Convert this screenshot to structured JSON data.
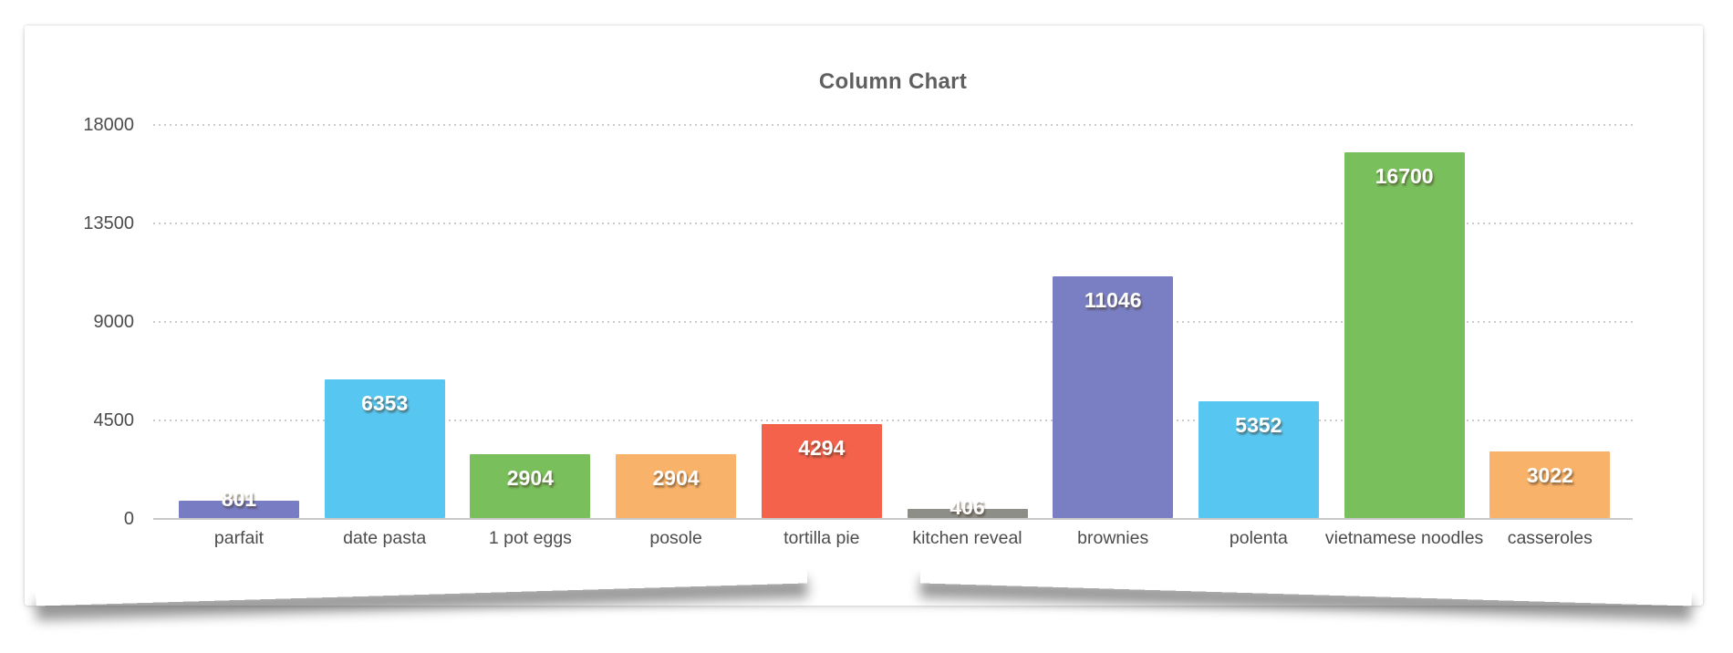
{
  "card": {
    "title_label": "Column Chart"
  },
  "chart_data": {
    "type": "bar",
    "title": "Column Chart",
    "categories": [
      "parfait",
      "date pasta",
      "1 pot eggs",
      "posole",
      "tortilla pie",
      "kitchen reveal",
      "brownies",
      "polenta",
      "vietnamese noodles",
      "casseroles"
    ],
    "values": [
      801,
      6353,
      2904,
      2904,
      4294,
      406,
      11046,
      5352,
      16700,
      3022
    ],
    "value_labels": [
      "801",
      "6353",
      "2904",
      "2904",
      "4294",
      "406",
      "11046",
      "5352",
      "16700",
      "3022"
    ],
    "bar_colors": [
      "#777CC3",
      "#57C7F2",
      "#79BF5C",
      "#F9B269",
      "#F5624C",
      "#8E8E89",
      "#7A7FC3",
      "#57C7F2",
      "#79BF5C",
      "#F9B269"
    ],
    "xlabel": "",
    "ylabel": "",
    "ylim": [
      0,
      18000
    ],
    "yticks": [
      0,
      4500,
      9000,
      13500,
      18000
    ],
    "ytick_labels": [
      "0",
      "4500",
      "9000",
      "13500",
      "18000"
    ],
    "grid": "horizontal-dotted",
    "legend": "none",
    "title_color": "#5f5f5f",
    "axis_text_color": "#4c4c4c",
    "axis_line_color": "#c9c9c9",
    "gridline_color": "#cccccc",
    "value_label_color": "#ffffff"
  }
}
